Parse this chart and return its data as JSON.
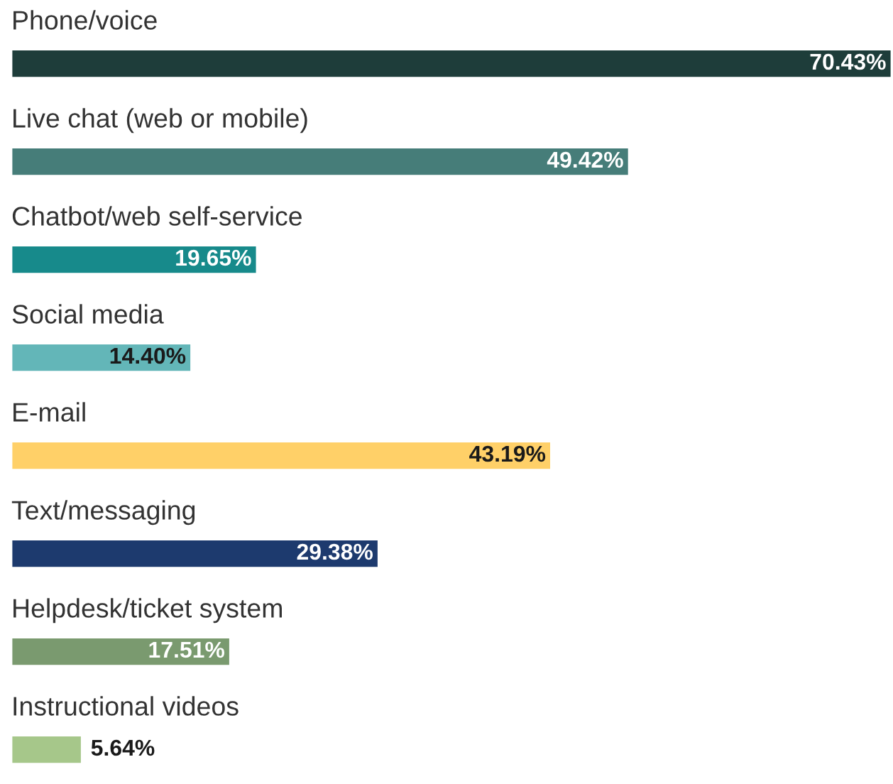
{
  "chart_data": {
    "type": "bar",
    "orientation": "horizontal",
    "categories": [
      "Phone/voice",
      "Live chat (web or mobile)",
      "Chatbot/web self-service",
      "Social media",
      "E-mail",
      "Text/messaging",
      "Helpdesk/ticket system",
      "Instructional videos"
    ],
    "values": [
      70.43,
      49.42,
      19.65,
      14.4,
      43.19,
      29.38,
      17.51,
      5.64
    ],
    "value_labels": [
      "70.43%",
      "49.42%",
      "19.65%",
      "14.40%",
      "43.19%",
      "29.38%",
      "17.51%",
      "5.64%"
    ],
    "colors": [
      "#1e3d3a",
      "#467d79",
      "#178a8b",
      "#63b6b8",
      "#ffd068",
      "#1d3a6e",
      "#7a9a6f",
      "#a6c78a"
    ]
  }
}
